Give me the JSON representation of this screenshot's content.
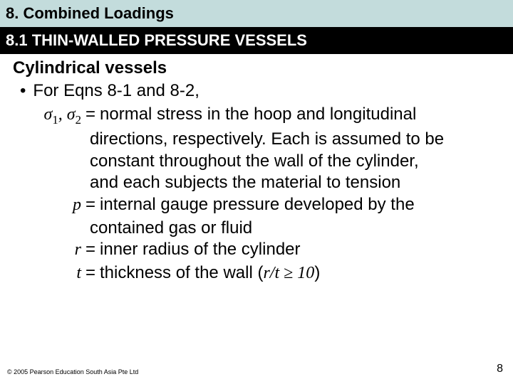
{
  "chapterBar": {
    "text": "8. Combined Loadings",
    "bg": "#c3dcdc",
    "color": "#000000",
    "fontSize": 22
  },
  "sectionBar": {
    "text": "8.1 THIN-WALLED PRESSURE VESSELS",
    "bg": "#000000",
    "color": "#ffffff",
    "fontSize": 22
  },
  "subheading": {
    "text": "Cylindrical vessels",
    "fontSize": 24,
    "color": "#000000"
  },
  "bullet": {
    "text": "For Eqns 8-1 and 8-2,",
    "fontSize": 24,
    "color": "#000000"
  },
  "defs": {
    "fontSize": 24,
    "color": "#000000",
    "symbols": {
      "sigma1": "σ",
      "sigma1sub": "1",
      "comma": ", ",
      "sigma2": "σ",
      "sigma2sub": "2",
      "p": "p",
      "r": "r",
      "t": "t"
    },
    "lines": {
      "sigma_l1": "normal stress in the hoop and longitudinal",
      "sigma_l2": "directions, respectively. Each is assumed to be",
      "sigma_l3": "constant throughout the wall of the cylinder,",
      "sigma_l4": "and each subjects the material to tension",
      "p_l1": "internal gauge pressure developed by the",
      "p_l2": "contained gas or fluid",
      "r_l1": "inner radius of the cylinder",
      "t_l1_a": "thickness of the wall (",
      "t_l1_b": "r/t ≥ 10",
      "t_l1_c": ")"
    }
  },
  "footer": {
    "copyright": "© 2005 Pearson Education South Asia Pte Ltd",
    "copyrightFontSize": 9,
    "pageNumber": "8",
    "pageFontSize": 16,
    "color": "#000000"
  }
}
